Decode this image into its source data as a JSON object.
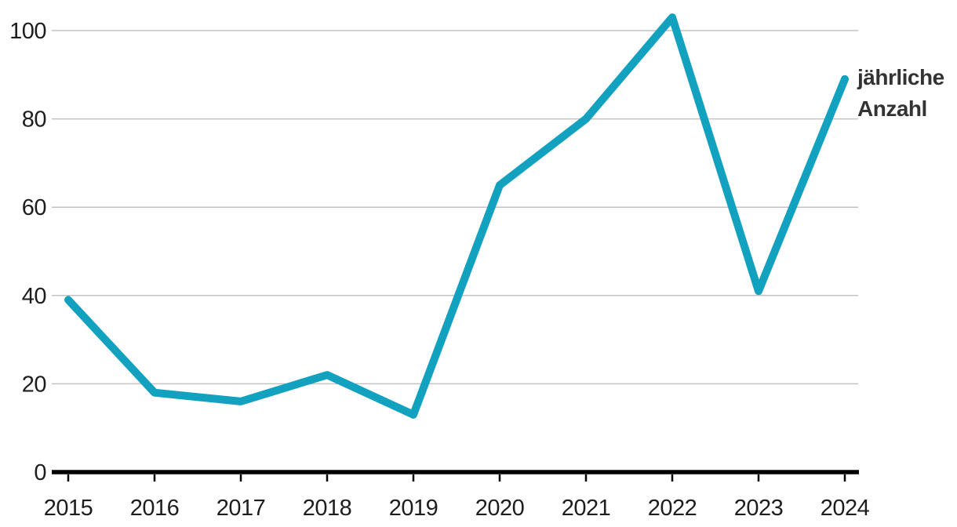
{
  "chart_data": {
    "type": "line",
    "title": "",
    "xlabel": "",
    "ylabel": "",
    "x": [
      2015,
      2016,
      2017,
      2018,
      2019,
      2020,
      2021,
      2022,
      2023,
      2024
    ],
    "series": [
      {
        "name": "jährliche Anzahl",
        "values": [
          39,
          18,
          16,
          22,
          13,
          65,
          80,
          103,
          41,
          89
        ]
      }
    ],
    "ylim": [
      0,
      100
    ],
    "yticks": [
      0,
      20,
      40,
      60,
      80,
      100
    ],
    "grid": "horizontal",
    "legend_position": "right-of-line-end",
    "colors": {
      "line": "#12a1be",
      "grid": "#c2c2c2",
      "axis": "#000000",
      "tick_text": "#1d1d1d",
      "label_text": "#333333"
    }
  }
}
